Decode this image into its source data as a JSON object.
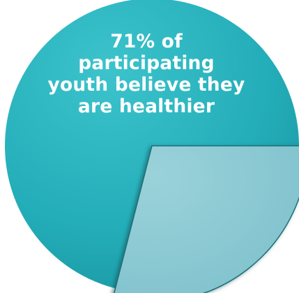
{
  "chart_data": {
    "type": "pie",
    "slices": [
      {
        "value": 71,
        "color": "#23adb8"
      },
      {
        "value": 29,
        "color": "#8ccad4"
      }
    ],
    "annotation_lines": [
      "71% of",
      "participating",
      "youth believe they",
      "are healthier"
    ],
    "colors": {
      "major": "#23adb8",
      "minor": "#8ccad4",
      "text": "#ffffff"
    }
  }
}
